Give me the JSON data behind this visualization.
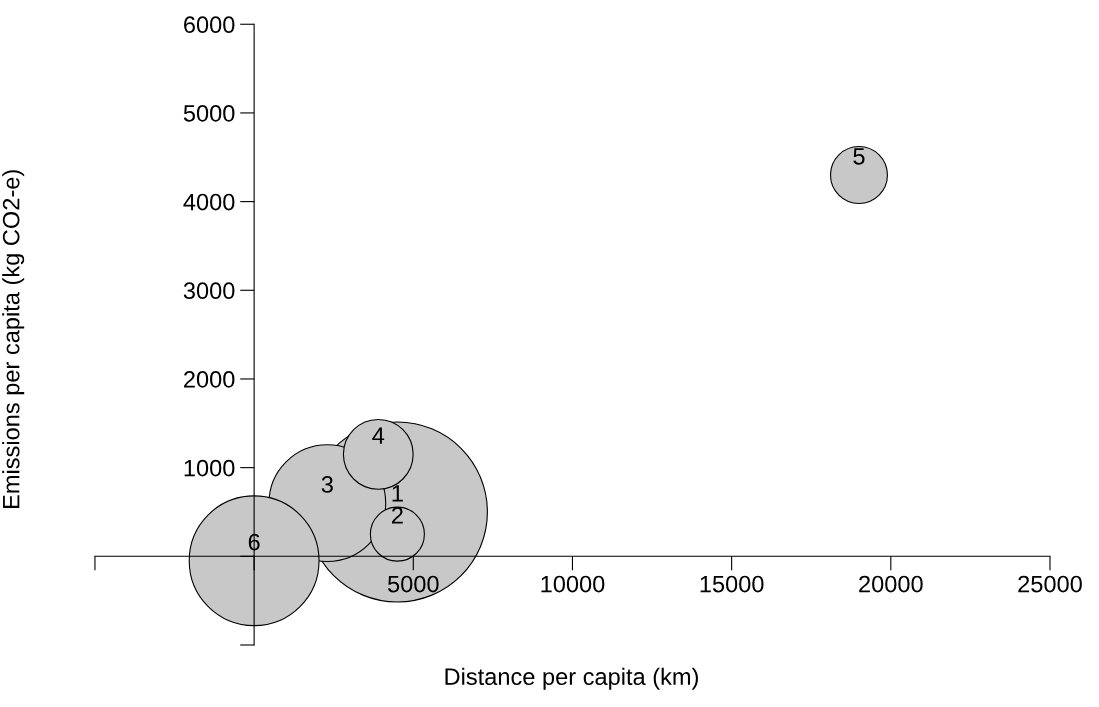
{
  "chart_data": {
    "type": "bubble",
    "xlabel": "Distance per capita (km)",
    "ylabel": "Emissions per capita (kg CO2-e)",
    "series": [
      {
        "name": "1",
        "color": "#c8c8c8",
        "x": [
          4500
        ],
        "values": [
          500
        ],
        "sizes": [
          1
        ]
      },
      {
        "name": "3",
        "color": "#c8c8c8",
        "x": [
          2300
        ],
        "values": [
          600
        ],
        "sizes": [
          0.42
        ]
      },
      {
        "name": "2",
        "color": "#c8c8c8",
        "x": [
          4500
        ],
        "values": [
          250
        ],
        "sizes": [
          0.09
        ]
      },
      {
        "name": "4",
        "color": "#c8c8c8",
        "x": [
          3900
        ],
        "values": [
          1150
        ],
        "sizes": [
          0.15
        ]
      },
      {
        "name": "5",
        "color": "#c8c8c8",
        "x": [
          19000
        ],
        "values": [
          4300
        ],
        "sizes": [
          0.1
        ]
      },
      {
        "name": "6",
        "color": "#c8c8c8",
        "x": [
          0
        ],
        "values": [
          -50
        ],
        "sizes": [
          0.52
        ]
      }
    ],
    "xlim": [
      -5000,
      25000
    ],
    "ylim": [
      -1000,
      6000
    ],
    "xticks": [
      {
        "value": -5000,
        "label": null
      },
      {
        "value": 0,
        "label": null
      },
      5000,
      10000,
      15000,
      20000,
      25000
    ],
    "yticks": [
      {
        "value": -1000,
        "label": null
      },
      {
        "value": 0,
        "label": null
      },
      1000,
      2000,
      3000,
      4000,
      5000,
      6000
    ],
    "grid": false,
    "legend": false
  }
}
